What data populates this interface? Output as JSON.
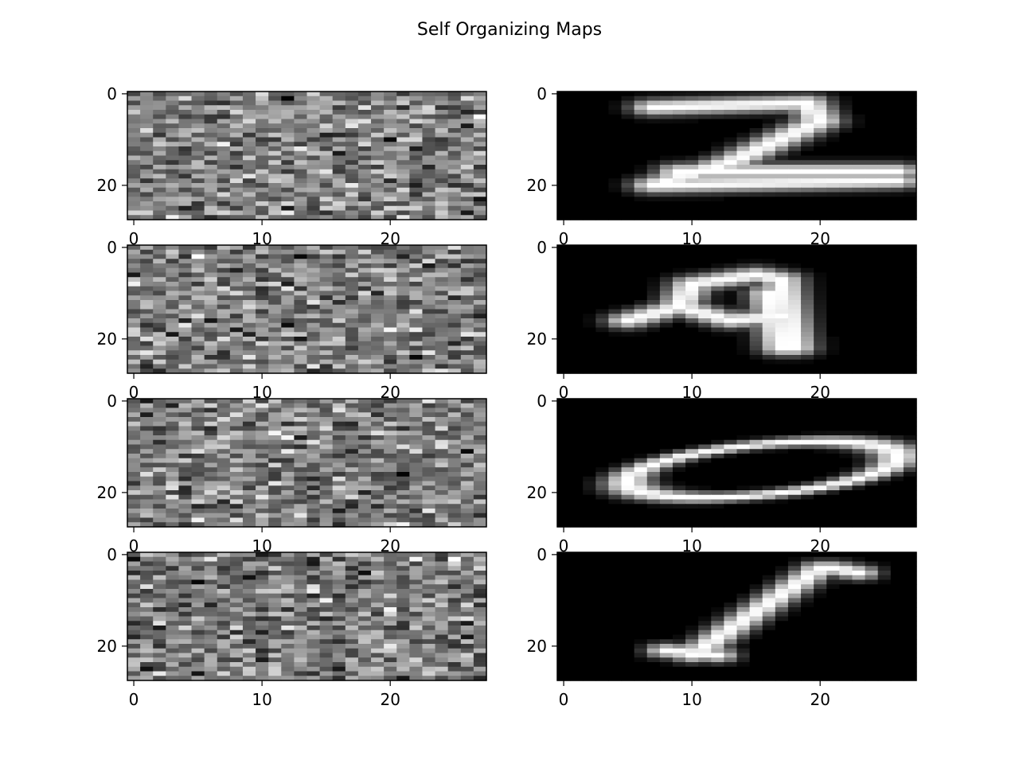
{
  "chart_data": {
    "type": "heatmap",
    "title": "Self Organizing Maps",
    "colormap": "gray",
    "image_size": [
      28,
      28
    ],
    "layout": {
      "rows": 4,
      "cols": 2
    },
    "columns": [
      {
        "content": "random noise weights"
      },
      {
        "content": "handwritten digit images"
      }
    ],
    "right_column_digits": [
      "2",
      "9",
      "0",
      "1"
    ],
    "xlim": [
      -0.5,
      27.5
    ],
    "ylim": [
      27.5,
      -0.5
    ],
    "xticks": [
      0,
      10,
      20
    ],
    "yticks": [
      0,
      20
    ],
    "grid": false,
    "panels": [
      {
        "row": 0,
        "col": 0,
        "xtick_labels": [
          "0",
          "10",
          "20"
        ],
        "ytick_labels": [
          "0",
          "20"
        ]
      },
      {
        "row": 0,
        "col": 1,
        "xtick_labels": [
          "0",
          "10",
          "20"
        ],
        "ytick_labels": [
          "0",
          "20"
        ]
      },
      {
        "row": 1,
        "col": 0,
        "xtick_labels": [
          "0",
          "10",
          "20"
        ],
        "ytick_labels": [
          "0",
          "20"
        ]
      },
      {
        "row": 1,
        "col": 1,
        "xtick_labels": [
          "0",
          "10",
          "20"
        ],
        "ytick_labels": [
          "0",
          "20"
        ]
      },
      {
        "row": 2,
        "col": 0,
        "xtick_labels": [
          "0",
          "10",
          "20"
        ],
        "ytick_labels": [
          "0",
          "20"
        ]
      },
      {
        "row": 2,
        "col": 1,
        "xtick_labels": [
          "0",
          "10",
          "20"
        ],
        "ytick_labels": [
          "0",
          "20"
        ]
      },
      {
        "row": 3,
        "col": 0,
        "xtick_labels": [
          "0",
          "10",
          "20"
        ],
        "ytick_labels": [
          "0",
          "20"
        ]
      },
      {
        "row": 3,
        "col": 1,
        "xtick_labels": [
          "0",
          "10",
          "20"
        ],
        "ytick_labels": [
          "0",
          "20"
        ]
      }
    ]
  }
}
